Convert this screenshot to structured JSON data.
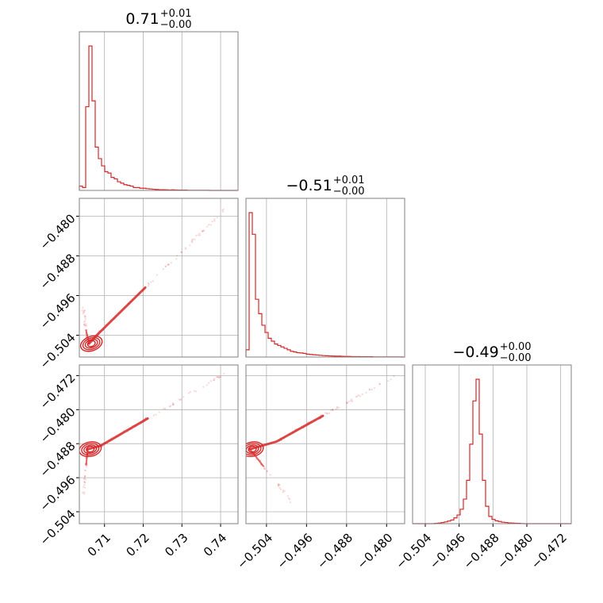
{
  "colors": {
    "line": "#d62728",
    "grid": "#b0b0b0",
    "frame": "#808080"
  },
  "chart_data": {
    "type": "corner",
    "grid": true,
    "parameters": [
      {
        "title": {
          "value": "0.71",
          "upper": "+0.01",
          "lower": "−0.00"
        },
        "xlim": [
          0.7035,
          0.7445
        ],
        "xticks": [
          {
            "value": 0.71,
            "label": "0.71"
          },
          {
            "value": 0.72,
            "label": "0.72"
          },
          {
            "value": 0.73,
            "label": "0.73"
          },
          {
            "value": 0.74,
            "label": "0.74"
          }
        ]
      },
      {
        "title": {
          "value": "−0.51",
          "upper": "+0.01",
          "lower": "−0.00"
        },
        "xlim": [
          -0.5081,
          -0.4764
        ],
        "xticks": [
          {
            "value": -0.504,
            "label": "−0.504"
          },
          {
            "value": -0.496,
            "label": "−0.496"
          },
          {
            "value": -0.488,
            "label": "−0.488"
          },
          {
            "value": -0.48,
            "label": "−0.480"
          }
        ]
      },
      {
        "title": {
          "value": "−0.49",
          "upper": "+0.00",
          "lower": "−0.00"
        },
        "xlim": [
          -0.507,
          -0.4695
        ],
        "xticks": [
          {
            "value": -0.504,
            "label": "−0.504"
          },
          {
            "value": -0.496,
            "label": "−0.496"
          },
          {
            "value": -0.488,
            "label": "−0.488"
          },
          {
            "value": -0.48,
            "label": "−0.480"
          },
          {
            "value": -0.472,
            "label": "−0.472"
          }
        ]
      }
    ],
    "histograms": [
      {
        "param": 0,
        "bin_start": 0.7035,
        "bin_width": 0.00082,
        "counts": [
          0.03,
          0.02,
          0.58,
          1.0,
          0.62,
          0.3,
          0.22,
          0.17,
          0.13,
          0.12,
          0.09,
          0.08,
          0.06,
          0.05,
          0.04,
          0.035,
          0.03,
          0.02,
          0.02,
          0.015,
          0.015,
          0.012,
          0.01,
          0.008,
          0.006,
          0.005,
          0.005,
          0.004,
          0.003,
          0.004,
          0.003,
          0.002,
          0.002,
          0.002,
          0.001,
          0.001,
          0.001,
          0.001,
          0.001,
          0.001,
          0.001,
          0.0,
          0.0,
          0.0,
          0.0,
          0.0,
          0.0,
          0.0,
          0.0,
          0.0
        ]
      },
      {
        "param": 1,
        "bin_start": -0.5081,
        "bin_width": 0.000634,
        "counts": [
          0.05,
          1.0,
          0.85,
          0.4,
          0.3,
          0.22,
          0.17,
          0.13,
          0.11,
          0.09,
          0.08,
          0.07,
          0.06,
          0.05,
          0.04,
          0.035,
          0.03,
          0.028,
          0.025,
          0.02,
          0.018,
          0.016,
          0.014,
          0.012,
          0.01,
          0.009,
          0.008,
          0.007,
          0.006,
          0.006,
          0.005,
          0.004,
          0.004,
          0.003,
          0.003,
          0.003,
          0.002,
          0.002,
          0.002,
          0.002,
          0.001,
          0.001,
          0.001,
          0.001,
          0.001,
          0.001,
          0.001,
          0.001,
          0.001,
          0.0
        ]
      },
      {
        "param": 2,
        "bin_start": -0.507,
        "bin_width": 0.00075,
        "counts": [
          0.0,
          0.0,
          0.0,
          0.0,
          0.0,
          0.0,
          0.0,
          0.002,
          0.004,
          0.008,
          0.012,
          0.018,
          0.025,
          0.04,
          0.06,
          0.1,
          0.17,
          0.3,
          0.55,
          0.85,
          1.0,
          0.62,
          0.3,
          0.12,
          0.05,
          0.03,
          0.02,
          0.015,
          0.01,
          0.008,
          0.005,
          0.004,
          0.003,
          0.002,
          0.001,
          0.0,
          0.0,
          0.0,
          0.0,
          0.0,
          0.0,
          0.0,
          0.0,
          0.0,
          0.0,
          0.0,
          0.0,
          0.0,
          0.0,
          0.0
        ]
      }
    ],
    "scatter_panels": [
      {
        "x_param": 0,
        "y_param": 1,
        "ylim": [
          -0.5084,
          -0.4764
        ],
        "yticks": [
          {
            "value": -0.48,
            "label": "−0.480"
          },
          {
            "value": -0.488,
            "label": "−0.488"
          },
          {
            "value": -0.496,
            "label": "−0.496"
          },
          {
            "value": -0.504,
            "label": "−0.504"
          }
        ]
      },
      {
        "x_param": 0,
        "y_param": 2,
        "ylim": [
          -0.5068,
          -0.4695
        ],
        "yticks": [
          {
            "value": -0.472,
            "label": "−0.472"
          },
          {
            "value": -0.48,
            "label": "−0.480"
          },
          {
            "value": -0.488,
            "label": "−0.488"
          },
          {
            "value": -0.496,
            "label": "−0.496"
          },
          {
            "value": -0.504,
            "label": "−0.504"
          }
        ]
      },
      {
        "x_param": 1,
        "y_param": 2,
        "ylim": [
          -0.5068,
          -0.4695
        ]
      }
    ]
  }
}
